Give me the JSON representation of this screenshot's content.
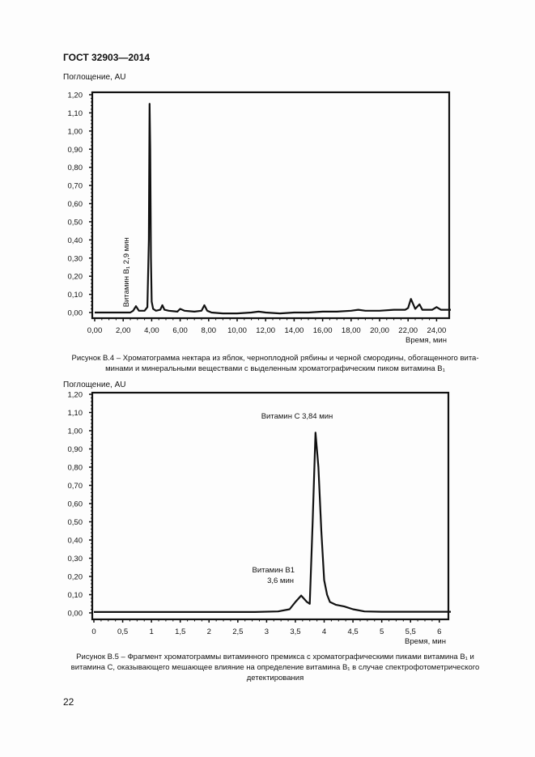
{
  "header": {
    "doc_title": "ГОСТ 32903—2014"
  },
  "page_number": "22",
  "figures": [
    {
      "id": "B.4",
      "caption_lines": [
        "Рисунок В.4 – Хроматограмма нектара из яблок, черноплодной рябины и черной смородины, обогащенного вита-",
        "минами и минеральными веществами с выделенным хроматографическим пиком витамина В₁"
      ]
    },
    {
      "id": "B.5",
      "caption_lines": [
        "Рисунок В.5 – Фрагмент хроматограммы витаминного премикса с хроматографическими пиками витамина В₁ и",
        "витамина С, оказывающего мешающее влияние на определение витамина В₁ в случае спектрофотометрического",
        "детектирования"
      ]
    }
  ],
  "chart_data": [
    {
      "type": "line",
      "title": "Хроматограмма нектара (Рисунок В.4)",
      "xlabel": "Время, мин",
      "ylabel": "Поглощение, AU",
      "xlim": [
        0,
        25
      ],
      "ylim": [
        0,
        1.2
      ],
      "x_ticks": [
        "0,00",
        "2,00",
        "4,00",
        "6,00",
        "8,00",
        "10,00",
        "12,00",
        "14,00",
        "16,00",
        "18,00",
        "20,00",
        "22,00",
        "24,00"
      ],
      "y_ticks": [
        "0,00",
        "0,10",
        "0,20",
        "0,30",
        "0,40",
        "0,50",
        "0,60",
        "0,70",
        "0,80",
        "0,90",
        "1,00",
        "1,10",
        "1,20"
      ],
      "grid": false,
      "annotations": [
        {
          "text": "Витамин В₁ 2,9 мин",
          "x": 2.9,
          "y": 0.04,
          "rotation": -90
        }
      ],
      "series": [
        {
          "name": "signal",
          "x": [
            0,
            1.5,
            2.5,
            2.7,
            2.9,
            3.1,
            3.5,
            3.7,
            3.8,
            3.85,
            3.9,
            3.95,
            4.0,
            4.1,
            4.3,
            4.6,
            4.75,
            4.9,
            5.2,
            5.8,
            6.0,
            6.3,
            7.0,
            7.5,
            7.7,
            7.9,
            8.2,
            9,
            10,
            11,
            11.5,
            12,
            13,
            14,
            15,
            16,
            17,
            18,
            18.5,
            19,
            20,
            21,
            21.8,
            22.0,
            22.2,
            22.5,
            22.8,
            23.0,
            23.3,
            23.7,
            24.0,
            24.3,
            25
          ],
          "y": [
            0.0,
            0.0,
            0.0,
            0.01,
            0.035,
            0.01,
            0.01,
            0.03,
            0.4,
            1.15,
            0.9,
            0.3,
            0.06,
            0.02,
            0.01,
            0.015,
            0.04,
            0.015,
            0.01,
            0.005,
            0.02,
            0.01,
            0.005,
            0.01,
            0.04,
            0.01,
            0.0,
            -0.005,
            -0.005,
            0.0,
            0.005,
            0.0,
            -0.005,
            0.0,
            0.0,
            0.005,
            0.005,
            0.01,
            0.015,
            0.01,
            0.01,
            0.015,
            0.015,
            0.025,
            0.075,
            0.02,
            0.045,
            0.015,
            0.015,
            0.015,
            0.03,
            0.015,
            0.015
          ]
        }
      ]
    },
    {
      "type": "line",
      "title": "Фрагмент хроматограммы витаминного премикса (Рисунок В.5)",
      "xlabel": "Время, мин",
      "ylabel": "Поглощение, AU",
      "xlim": [
        0,
        6.2
      ],
      "ylim": [
        0,
        1.2
      ],
      "x_ticks": [
        "0",
        "0,5",
        "1",
        "1,5",
        "2",
        "2,5",
        "3",
        "3,5",
        "4",
        "4,5",
        "5",
        "5,5",
        "6"
      ],
      "y_ticks": [
        "0,00",
        "0,10",
        "0,20",
        "0,30",
        "0,40",
        "0,50",
        "0,60",
        "0,70",
        "0,80",
        "0,90",
        "1,00",
        "1,10",
        "1,20"
      ],
      "grid": false,
      "annotations": [
        {
          "text": "Витамин С 3,84 мин",
          "x": 3.84,
          "y": 1.02
        },
        {
          "text": "Витамин В1",
          "x": 3.6,
          "y": 0.13
        },
        {
          "text": "3,6 мин",
          "x": 3.6,
          "y": 0.11
        }
      ],
      "series": [
        {
          "name": "signal",
          "x": [
            0,
            1,
            2,
            2.8,
            3.2,
            3.4,
            3.5,
            3.6,
            3.7,
            3.75,
            3.8,
            3.85,
            3.9,
            3.95,
            4.0,
            4.05,
            4.1,
            4.2,
            4.35,
            4.5,
            4.7,
            5,
            5.5,
            6.2
          ],
          "y": [
            0.005,
            0.005,
            0.005,
            0.005,
            0.008,
            0.02,
            0.06,
            0.095,
            0.06,
            0.05,
            0.5,
            0.99,
            0.8,
            0.45,
            0.18,
            0.1,
            0.06,
            0.045,
            0.035,
            0.02,
            0.008,
            0.006,
            0.006,
            0.006
          ]
        }
      ]
    }
  ]
}
